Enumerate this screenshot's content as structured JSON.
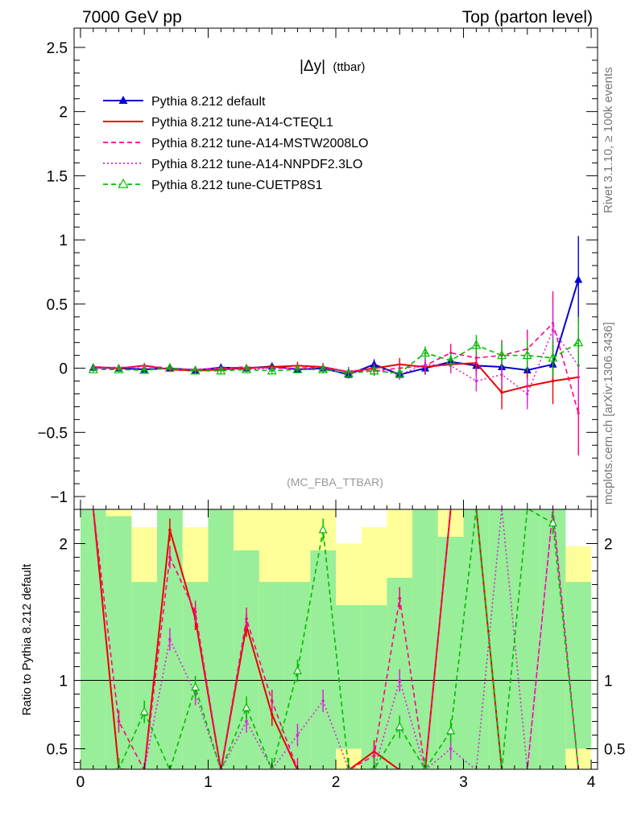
{
  "header": {
    "left": "7000 GeV pp",
    "right": "Top (parton level)"
  },
  "side_labels": {
    "rivet": "Rivet 3.1.10, ≥ 100k events",
    "mcplots": "mcplots.cern.ch [arXiv:1306.3436]"
  },
  "chart_data": {
    "type": "line",
    "title": "|Δy| (ttbar)",
    "title_main": "|Δy|",
    "title_sub": "(ttbar)",
    "analysis": "(MC_FBA_TTBAR)",
    "xlabel": "",
    "ylabel": "",
    "ratio_ylabel": "Ratio to Pythia 8.212 default",
    "xlim": [
      -0.05,
      4.05
    ],
    "ylim": [
      -1.1,
      2.65
    ],
    "ratio_ylim": [
      0.35,
      2.25
    ],
    "x_ticks": [
      "0",
      "1",
      "2",
      "3",
      "4"
    ],
    "y_ticks": [
      "−1",
      "−0.5",
      "0",
      "0.5",
      "1",
      "1.5",
      "2",
      "2.5"
    ],
    "ratio_y_ticks": [
      "0.5",
      "1",
      "2"
    ],
    "x": [
      0.1,
      0.3,
      0.5,
      0.7,
      0.9,
      1.1,
      1.3,
      1.5,
      1.7,
      1.9,
      2.1,
      2.3,
      2.5,
      2.7,
      2.9,
      3.1,
      3.3,
      3.5,
      3.7,
      3.9
    ],
    "series": [
      {
        "name": "Pythia 8.212 default",
        "color": "#0000cc",
        "style": "solid-triangle",
        "values": [
          0.005,
          0.0,
          -0.01,
          0.0,
          -0.015,
          0.005,
          0.0,
          0.015,
          -0.01,
          0.0,
          -0.05,
          0.03,
          -0.05,
          0.0,
          0.05,
          0.02,
          0.01,
          -0.015,
          0.03,
          0.69
        ],
        "errors": [
          0.02,
          0.02,
          0.02,
          0.02,
          0.02,
          0.02,
          0.02,
          0.02,
          0.03,
          0.03,
          0.03,
          0.04,
          0.04,
          0.05,
          0.06,
          0.08,
          0.1,
          0.12,
          0.15,
          0.34
        ]
      },
      {
        "name": "Pythia 8.212 tune-A14-CTEQL1",
        "color": "#ee0000",
        "style": "solid",
        "values": [
          0.01,
          0.0,
          0.02,
          -0.01,
          -0.02,
          -0.01,
          0.0,
          0.01,
          0.02,
          0.01,
          -0.03,
          0.0,
          0.03,
          0.01,
          0.03,
          0.04,
          -0.19,
          -0.14,
          -0.1,
          -0.07
        ],
        "errors": [
          0.02,
          0.02,
          0.02,
          0.02,
          0.02,
          0.02,
          0.03,
          0.03,
          0.03,
          0.03,
          0.04,
          0.04,
          0.05,
          0.05,
          0.06,
          0.08,
          0.13,
          0.15,
          0.18,
          0.2
        ]
      },
      {
        "name": "Pythia 8.212 tune-A14-MSTW2008LO",
        "color": "#ff0088",
        "style": "dashed",
        "values": [
          0.01,
          0.0,
          0.02,
          0.0,
          -0.01,
          0.0,
          0.01,
          0.0,
          0.0,
          0.01,
          -0.03,
          -0.02,
          0.0,
          0.02,
          0.12,
          0.08,
          0.1,
          0.15,
          0.35,
          -0.35
        ],
        "errors": [
          0.02,
          0.02,
          0.02,
          0.02,
          0.02,
          0.02,
          0.02,
          0.02,
          0.03,
          0.03,
          0.03,
          0.04,
          0.04,
          0.05,
          0.07,
          0.09,
          0.12,
          0.15,
          0.25,
          0.33
        ]
      },
      {
        "name": "Pythia 8.212 tune-A14-NNPDF2.3LO",
        "color": "#dd22dd",
        "style": "dotted",
        "values": [
          0.0,
          0.01,
          0.0,
          0.0,
          -0.01,
          0.0,
          -0.01,
          0.0,
          0.0,
          -0.01,
          -0.02,
          -0.01,
          -0.05,
          0.03,
          0.02,
          -0.1,
          -0.05,
          -0.2,
          0.3,
          0.02
        ],
        "errors": [
          0.02,
          0.02,
          0.02,
          0.02,
          0.02,
          0.02,
          0.02,
          0.02,
          0.03,
          0.03,
          0.03,
          0.04,
          0.04,
          0.05,
          0.06,
          0.08,
          0.1,
          0.12,
          0.2,
          0.3
        ]
      },
      {
        "name": "Pythia 8.212 tune-CUETP8S1",
        "color": "#00bb00",
        "style": "dashed-open-triangle",
        "values": [
          -0.01,
          -0.01,
          -0.015,
          0.0,
          -0.02,
          -0.02,
          -0.01,
          -0.02,
          -0.01,
          -0.01,
          -0.04,
          -0.02,
          -0.04,
          0.12,
          0.06,
          0.18,
          0.1,
          0.1,
          0.08,
          0.2
        ],
        "errors": [
          0.02,
          0.02,
          0.02,
          0.02,
          0.02,
          0.02,
          0.02,
          0.02,
          0.03,
          0.03,
          0.03,
          0.04,
          0.04,
          0.05,
          0.06,
          0.08,
          0.1,
          0.12,
          0.15,
          0.2
        ]
      }
    ],
    "ratio_band": {
      "yellow_low": [
        0.35,
        0.35,
        0.35,
        0.35,
        0.35,
        0.35,
        0.35,
        0.35,
        0.35,
        0.35,
        0.35,
        0.35,
        0.35,
        0.35,
        0.35,
        0.35,
        0.35,
        0.35,
        0.35,
        0.35
      ],
      "yellow_high": [
        2.25,
        2.25,
        2.12,
        2.25,
        2.12,
        2.25,
        2.25,
        2.25,
        2.25,
        2.25,
        2.0,
        2.12,
        2.25,
        2.25,
        2.25,
        2.25,
        2.25,
        2.25,
        2.25,
        1.98
      ],
      "green_low": [
        0.35,
        0.35,
        0.35,
        0.35,
        0.35,
        0.35,
        0.35,
        0.35,
        0.35,
        0.35,
        0.5,
        0.35,
        0.35,
        0.35,
        0.35,
        0.35,
        0.35,
        0.35,
        0.35,
        0.5
      ],
      "green_high": [
        2.25,
        2.2,
        1.72,
        2.25,
        1.72,
        2.25,
        1.95,
        1.72,
        1.72,
        1.95,
        1.55,
        1.55,
        1.75,
        2.25,
        2.05,
        2.25,
        2.25,
        2.25,
        2.25,
        1.72
      ]
    },
    "ratio_series": [
      {
        "name": "Pythia 8.212 tune-A14-CTEQL1",
        "values": [
          3.5,
          0.35,
          -1.0,
          2.1,
          1.45,
          -2.0,
          1.4,
          0.75,
          0.3,
          -1.0,
          -1.0,
          0.48,
          -1.0,
          -1.0,
          3.0,
          3.0,
          0.3,
          -1.0,
          -1.0,
          0.3
        ]
      },
      {
        "name": "Pythia 8.212 tune-A14-MSTW2008LO",
        "values": [
          3.0,
          0.7,
          -1.0,
          1.9,
          1.5,
          -1.0,
          1.45,
          0.85,
          0.35,
          -1.0,
          -1.0,
          0.45,
          1.6,
          -1.0,
          2.5,
          4.0,
          0.3,
          -2.0,
          5.0,
          0.3
        ]
      },
      {
        "name": "Pythia 8.212 tune-A14-NNPDF2.3LO",
        "values": [
          0.0,
          0.35,
          0.0,
          1.3,
          0.9,
          0.2,
          0.7,
          0.35,
          0.6,
          0.85,
          0.35,
          0.3,
          1.0,
          0.2,
          0.5,
          -2.0,
          3.0,
          -3.0,
          3.0,
          0.3
        ]
      },
      {
        "name": "Pythia 8.212 tune-CUETP8S1",
        "values": [
          -2.0,
          0.35,
          0.77,
          0.2,
          0.95,
          0.2,
          0.8,
          0.35,
          1.07,
          2.1,
          0.35,
          0.35,
          0.66,
          0.35,
          0.63,
          3.0,
          0.2,
          3.0,
          2.15,
          0.3
        ]
      }
    ]
  }
}
